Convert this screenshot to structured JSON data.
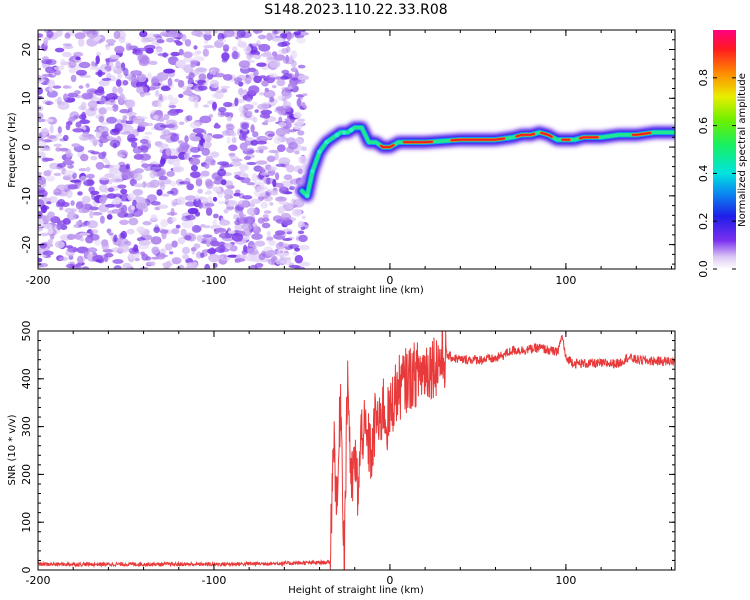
{
  "title": "S148.2023.110.22.33.R08",
  "chart_data": [
    {
      "type": "heatmap",
      "xlabel": "Height of straight line (km)",
      "ylabel": "Frequency (Hz)",
      "xlim": [
        -200,
        162
      ],
      "ylim": [
        -25,
        24
      ],
      "xticks": [
        "-200",
        "-100",
        "0",
        "100"
      ],
      "yticks": [
        "20",
        "10",
        "0",
        "-10",
        "-20"
      ],
      "noise_region_x": [
        -200,
        -48
      ],
      "ridge": {
        "x": [
          -50,
          -47,
          -44,
          -40,
          -36,
          -32,
          -28,
          -24,
          -20,
          -16,
          -12,
          -8,
          -4,
          0,
          5,
          10,
          20,
          40,
          60,
          70,
          75,
          80,
          85,
          90,
          95,
          100,
          105,
          110,
          120,
          130,
          140,
          150,
          162
        ],
        "y": [
          -9,
          -10,
          -5,
          -1,
          1,
          2,
          3,
          3,
          4,
          4,
          1,
          1,
          0,
          0,
          1,
          1,
          1,
          1.5,
          1.5,
          2,
          2.5,
          2.5,
          3,
          2.5,
          1.5,
          1.5,
          1.5,
          2,
          2,
          2.5,
          2.5,
          3,
          3
        ]
      },
      "colorbar": {
        "label": "Normalized spectral amplitude",
        "ticks": [
          "0.0",
          "0.2",
          "0.4",
          "0.6",
          "0.8"
        ],
        "range": [
          0,
          1
        ]
      }
    },
    {
      "type": "line",
      "xlabel": "Height of straight line (km)",
      "ylabel": "SNR (10 * v/v)",
      "xlim": [
        -200,
        162
      ],
      "ylim": [
        0,
        500
      ],
      "xticks": [
        "-200",
        "-100",
        "0",
        "100"
      ],
      "yticks": [
        "500",
        "400",
        "300",
        "200",
        "100",
        "0"
      ],
      "color": "#e83a3a",
      "series": [
        {
          "x": [
            -200,
            -150,
            -100,
            -60,
            -34,
            -32,
            -30,
            -28,
            -26,
            -24,
            -22,
            -20,
            -18,
            -16,
            -14,
            -12,
            -10,
            -8,
            -6,
            -4,
            -2,
            0,
            2,
            5,
            10,
            15,
            20,
            25,
            30,
            32,
            35,
            40,
            45,
            50,
            60,
            70,
            75,
            80,
            85,
            90,
            95,
            98,
            100,
            102,
            105,
            110,
            120,
            130,
            135,
            140,
            150,
            162
          ],
          "y": [
            12,
            12,
            12,
            14,
            16,
            290,
            120,
            380,
            20,
            420,
            170,
            230,
            160,
            300,
            280,
            260,
            240,
            330,
            290,
            350,
            310,
            320,
            360,
            380,
            400,
            410,
            420,
            430,
            440,
            450,
            445,
            440,
            440,
            440,
            442,
            460,
            460,
            462,
            465,
            460,
            455,
            490,
            440,
            440,
            432,
            432,
            432,
            432,
            445,
            440,
            437,
            437
          ]
        }
      ]
    }
  ]
}
